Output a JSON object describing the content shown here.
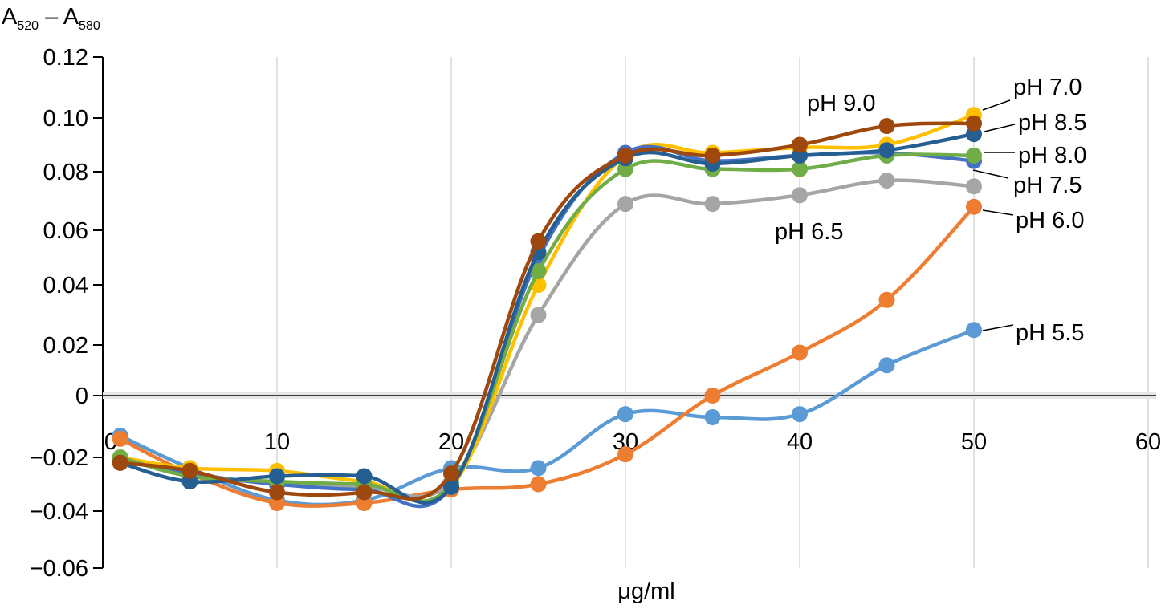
{
  "chart_data": {
    "type": "line",
    "title": "",
    "ylabel": {
      "main": "A",
      "sub1": "520",
      "dash": " – ",
      "main2": "A",
      "sub2": "580"
    },
    "xlabel": "μg/ml",
    "xlim": [
      0,
      60
    ],
    "ylim": [
      -0.06,
      0.12
    ],
    "x_ticks": [
      "0",
      "10",
      "20",
      "30",
      "40",
      "50",
      "60"
    ],
    "y_ticks": [
      "0.12",
      "0.10",
      "0.08",
      "0.06",
      "0.04",
      "0.02",
      "0",
      "−0.02",
      "−0.04",
      "−0.06"
    ],
    "grid": "vertical",
    "x": [
      1,
      5,
      10,
      15,
      20,
      25,
      30,
      35,
      40,
      45,
      50
    ],
    "series": [
      {
        "name": "pH 5.5",
        "color": "#5B9BD5",
        "values": [
          -0.013,
          -0.024,
          -0.036,
          -0.036,
          -0.024,
          -0.024,
          -0.006,
          -0.007,
          -0.006,
          0.012,
          0.025
        ]
      },
      {
        "name": "pH 6.0",
        "color": "#ED7D31",
        "values": [
          -0.014,
          -0.026,
          -0.037,
          -0.037,
          -0.032,
          -0.03,
          -0.019,
          0.0,
          0.017,
          0.035,
          0.068
        ]
      },
      {
        "name": "pH 6.5",
        "color": "#A5A5A5",
        "values": [
          -0.021,
          -0.026,
          -0.03,
          -0.031,
          -0.029,
          0.03,
          0.069,
          0.069,
          0.072,
          0.077,
          0.075
        ]
      },
      {
        "name": "pH 7.0",
        "color": "#FFC000",
        "values": [
          -0.02,
          -0.024,
          -0.025,
          -0.029,
          -0.031,
          0.04,
          0.086,
          0.087,
          0.089,
          0.09,
          0.101
        ]
      },
      {
        "name": "pH 7.5",
        "color": "#4472C4",
        "values": [
          -0.021,
          -0.026,
          -0.03,
          -0.032,
          -0.031,
          0.05,
          0.087,
          0.084,
          0.086,
          0.087,
          0.084
        ]
      },
      {
        "name": "pH 8.0",
        "color": "#70AD47",
        "values": [
          -0.02,
          -0.027,
          -0.029,
          -0.03,
          -0.03,
          0.045,
          0.081,
          0.081,
          0.081,
          0.086,
          0.086
        ]
      },
      {
        "name": "pH 8.5",
        "color": "#255E91",
        "values": [
          -0.022,
          -0.029,
          -0.027,
          -0.027,
          -0.031,
          0.052,
          0.085,
          0.083,
          0.086,
          0.088,
          0.094
        ]
      },
      {
        "name": "pH 9.0",
        "color": "#9E480E",
        "values": [
          -0.022,
          -0.025,
          -0.033,
          -0.033,
          -0.026,
          0.056,
          0.086,
          0.086,
          0.09,
          0.097,
          0.098
        ]
      }
    ]
  }
}
